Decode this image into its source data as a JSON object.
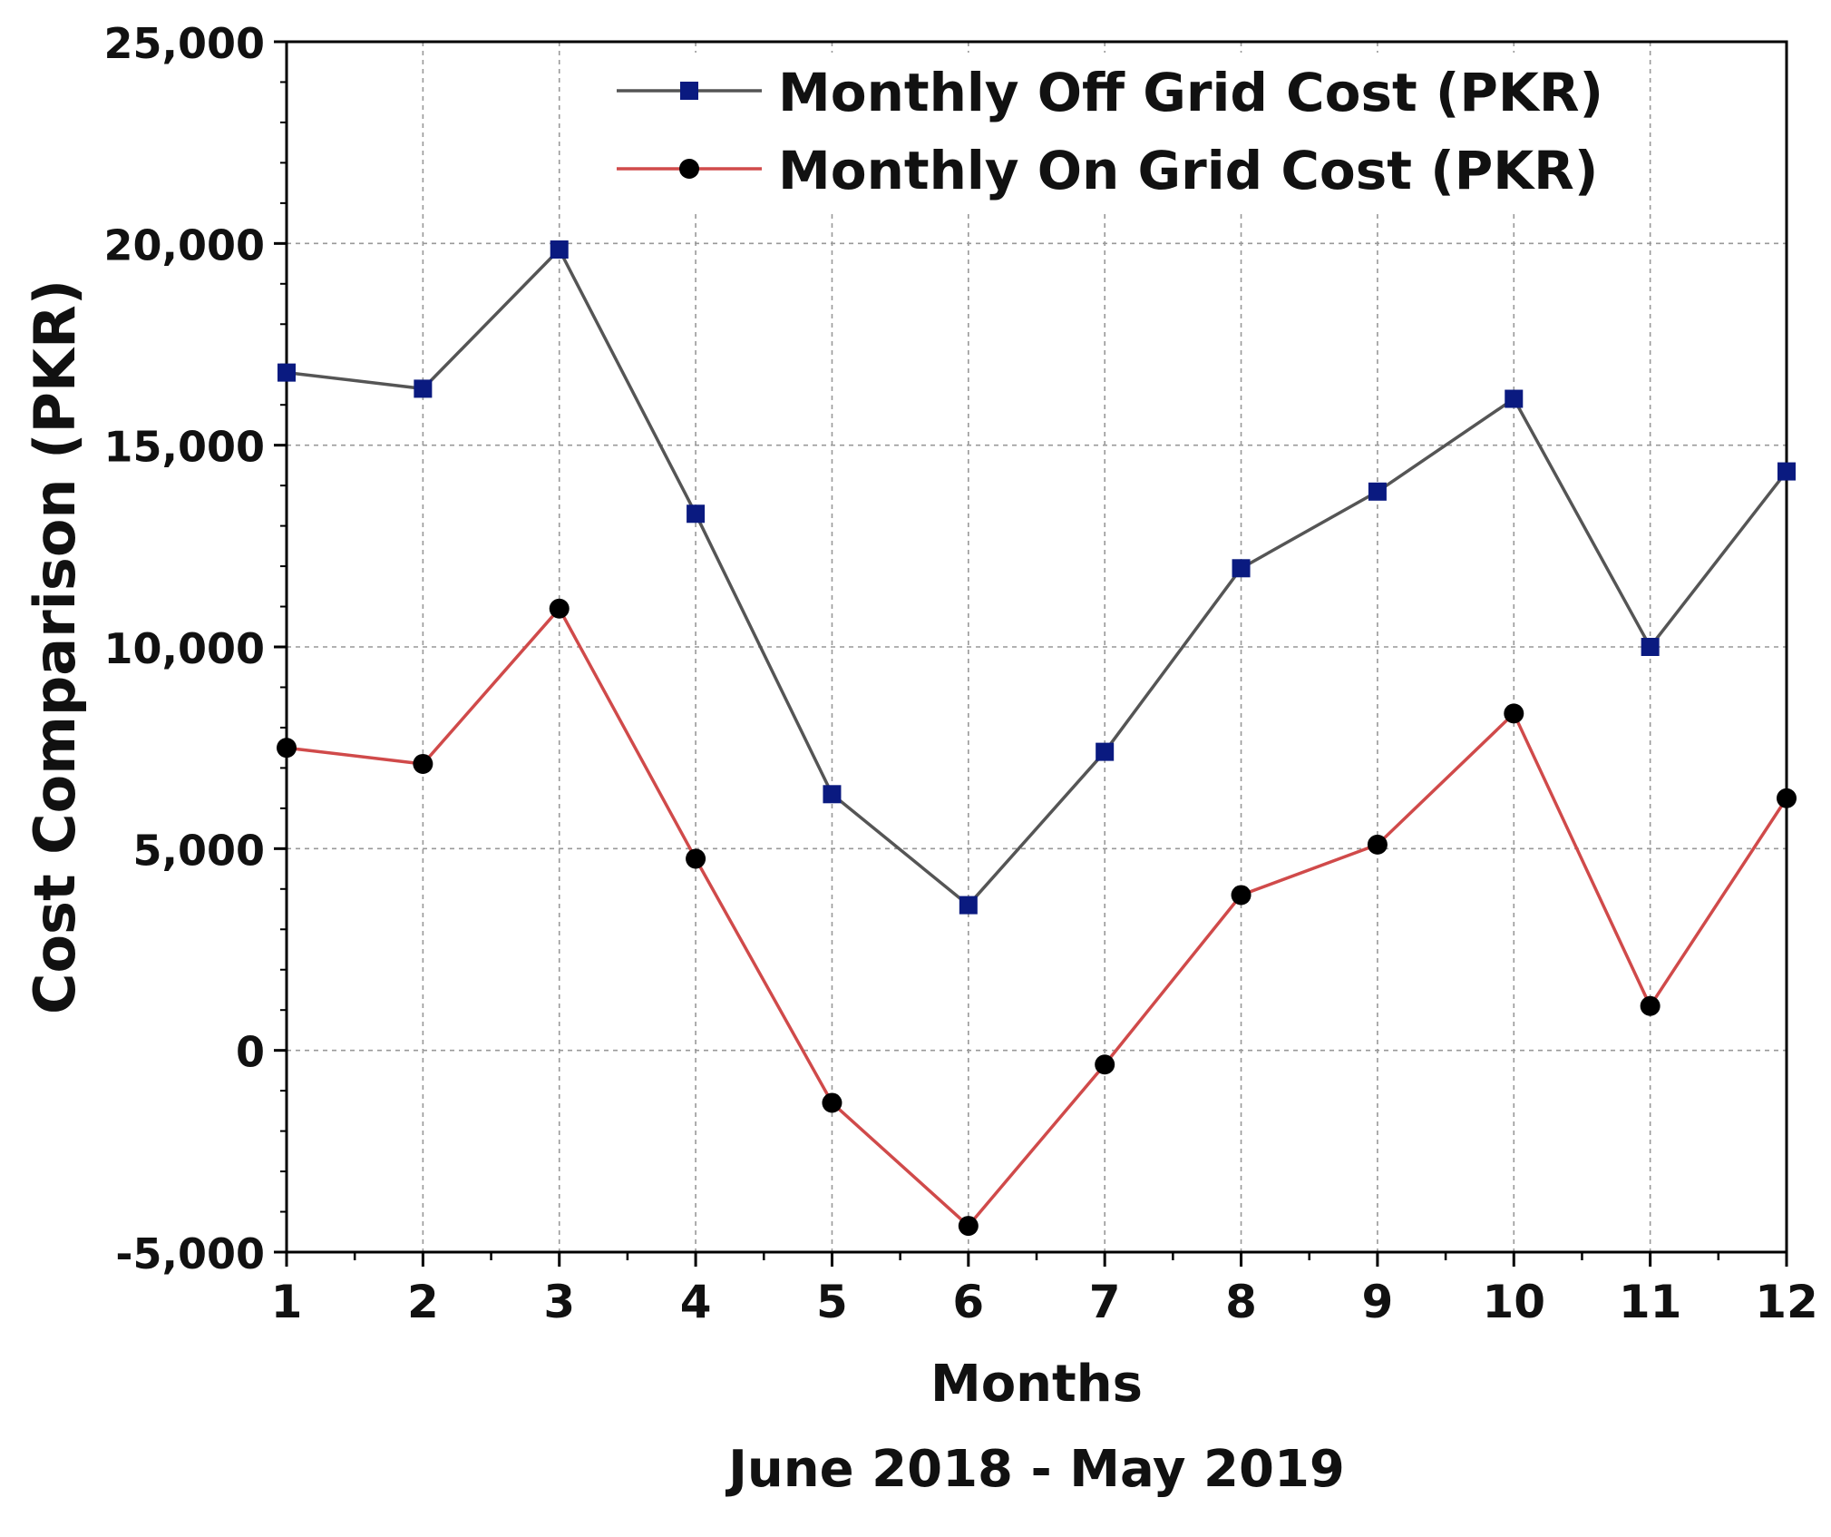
{
  "chart_data": {
    "type": "line",
    "x": [
      1,
      2,
      3,
      4,
      5,
      6,
      7,
      8,
      9,
      10,
      11,
      12
    ],
    "x_tick_labels": [
      "1",
      "2",
      "3",
      "4",
      "5",
      "6",
      "7",
      "8",
      "9",
      "10",
      "11",
      "12"
    ],
    "xlim": [
      1,
      12
    ],
    "ylim": [
      -5000,
      25000
    ],
    "y_ticks": [
      -5000,
      0,
      5000,
      10000,
      15000,
      20000,
      25000
    ],
    "y_tick_labels": [
      "-5,000",
      "0",
      "5,000",
      "10,000",
      "15,000",
      "20,000",
      "25,000"
    ],
    "xlabel": "Months",
    "xlabel_sub": "June 2018 - May 2019",
    "ylabel": "Cost Comparison (PKR)",
    "grid": true,
    "legend_position": "top-right",
    "series": [
      {
        "name": "Monthly Off Grid Cost (PKR)",
        "marker": "square",
        "line_color": "#555555",
        "marker_color": "#0a1a80",
        "values": [
          16800,
          16400,
          19850,
          13300,
          6350,
          3600,
          7400,
          11950,
          13850,
          16150,
          10000,
          14350
        ]
      },
      {
        "name": "Monthly On Grid Cost (PKR)",
        "marker": "circle",
        "line_color": "#d04a4a",
        "marker_color": "#000000",
        "values": [
          7500,
          7100,
          10950,
          4750,
          -1300,
          -4350,
          -350,
          3850,
          5100,
          8350,
          1100,
          6250
        ]
      }
    ]
  }
}
